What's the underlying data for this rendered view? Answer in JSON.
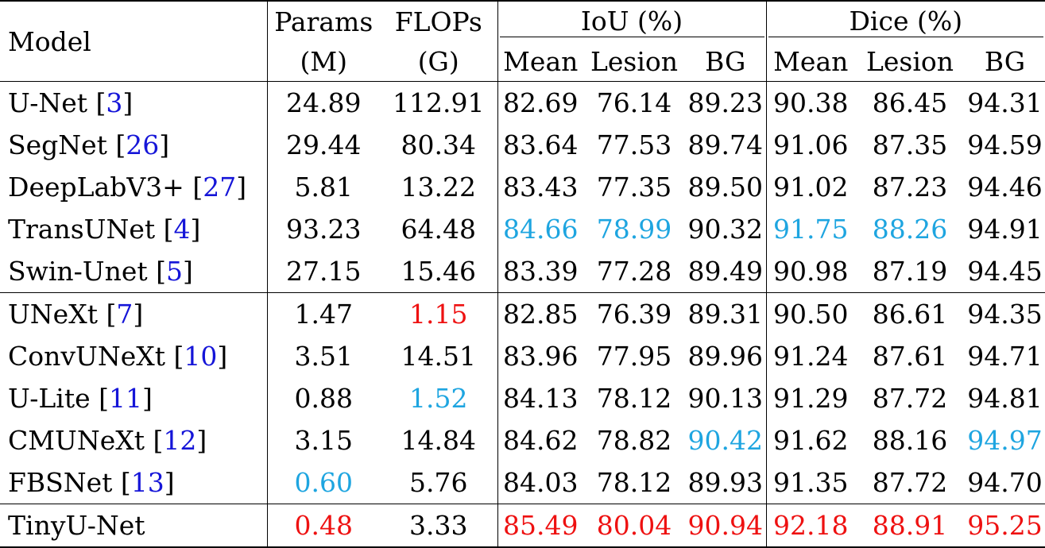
{
  "header": {
    "model": "Model",
    "params": "Params",
    "params_unit": "(M)",
    "flops": "FLOPs",
    "flops_unit": "(G)",
    "iou_group": "IoU (%)",
    "dice_group": "Dice (%)",
    "sub": [
      "Mean",
      "Lesion",
      "BG"
    ]
  },
  "colors": {
    "best": "#ee1111",
    "second": "#1ea5e0",
    "citation": "#1515d8"
  },
  "rows": [
    {
      "name": "U-Net ",
      "ref": "3",
      "params": "24.89",
      "flops": "112.91",
      "iou": [
        "82.69",
        "76.14",
        "89.23"
      ],
      "dice": [
        "90.38",
        "86.45",
        "94.31"
      ],
      "hl": {}
    },
    {
      "name": "SegNet ",
      "ref": "26",
      "params": "29.44",
      "flops": "80.34",
      "iou": [
        "83.64",
        "77.53",
        "89.74"
      ],
      "dice": [
        "91.06",
        "87.35",
        "94.59"
      ],
      "hl": {}
    },
    {
      "name": "DeepLabV3+ ",
      "ref": "27",
      "params": "5.81",
      "flops": "13.22",
      "iou": [
        "83.43",
        "77.35",
        "89.50"
      ],
      "dice": [
        "91.02",
        "87.23",
        "94.46"
      ],
      "hl": {}
    },
    {
      "name": "TransUNet ",
      "ref": "4",
      "params": "93.23",
      "flops": "64.48",
      "iou": [
        "84.66",
        "78.99",
        "90.32"
      ],
      "dice": [
        "91.75",
        "88.26",
        "94.91"
      ],
      "hl": {
        "iou0": "cyan",
        "iou1": "cyan",
        "dice0": "cyan",
        "dice1": "cyan"
      }
    },
    {
      "name": "Swin-Unet ",
      "ref": "5",
      "params": "27.15",
      "flops": "15.46",
      "iou": [
        "83.39",
        "77.28",
        "89.49"
      ],
      "dice": [
        "90.98",
        "87.19",
        "94.45"
      ],
      "hl": {}
    },
    {
      "name": "UNeXt ",
      "ref": "7",
      "params": "1.47",
      "flops": "1.15",
      "iou": [
        "82.85",
        "76.39",
        "89.31"
      ],
      "dice": [
        "90.50",
        "86.61",
        "94.35"
      ],
      "hl": {
        "flops": "red"
      },
      "sep": true
    },
    {
      "name": "ConvUNeXt ",
      "ref": "10",
      "params": "3.51",
      "flops": "14.51",
      "iou": [
        "83.96",
        "77.95",
        "89.96"
      ],
      "dice": [
        "91.24",
        "87.61",
        "94.71"
      ],
      "hl": {}
    },
    {
      "name": "U-Lite ",
      "ref": "11",
      "params": "0.88",
      "flops": "1.52",
      "iou": [
        "84.13",
        "78.12",
        "90.13"
      ],
      "dice": [
        "91.29",
        "87.72",
        "94.81"
      ],
      "hl": {
        "flops": "cyan"
      }
    },
    {
      "name": "CMUNeXt ",
      "ref": "12",
      "params": "3.15",
      "flops": "14.84",
      "iou": [
        "84.62",
        "78.82",
        "90.42"
      ],
      "dice": [
        "91.62",
        "88.16",
        "94.97"
      ],
      "hl": {
        "iou2": "cyan",
        "dice2": "cyan"
      }
    },
    {
      "name": "FBSNet ",
      "ref": "13",
      "params": "0.60",
      "flops": "5.76",
      "iou": [
        "84.03",
        "78.12",
        "89.93"
      ],
      "dice": [
        "91.35",
        "87.72",
        "94.70"
      ],
      "hl": {
        "params": "cyan"
      }
    },
    {
      "name": "TinyU-Net",
      "ref": "",
      "params": "0.48",
      "flops": "3.33",
      "iou": [
        "85.49",
        "80.04",
        "90.94"
      ],
      "dice": [
        "92.18",
        "88.91",
        "95.25"
      ],
      "hl": {
        "params": "red",
        "iou0": "red",
        "iou1": "red",
        "iou2": "red",
        "dice0": "red",
        "dice1": "red",
        "dice2": "red"
      },
      "sep": true
    }
  ]
}
